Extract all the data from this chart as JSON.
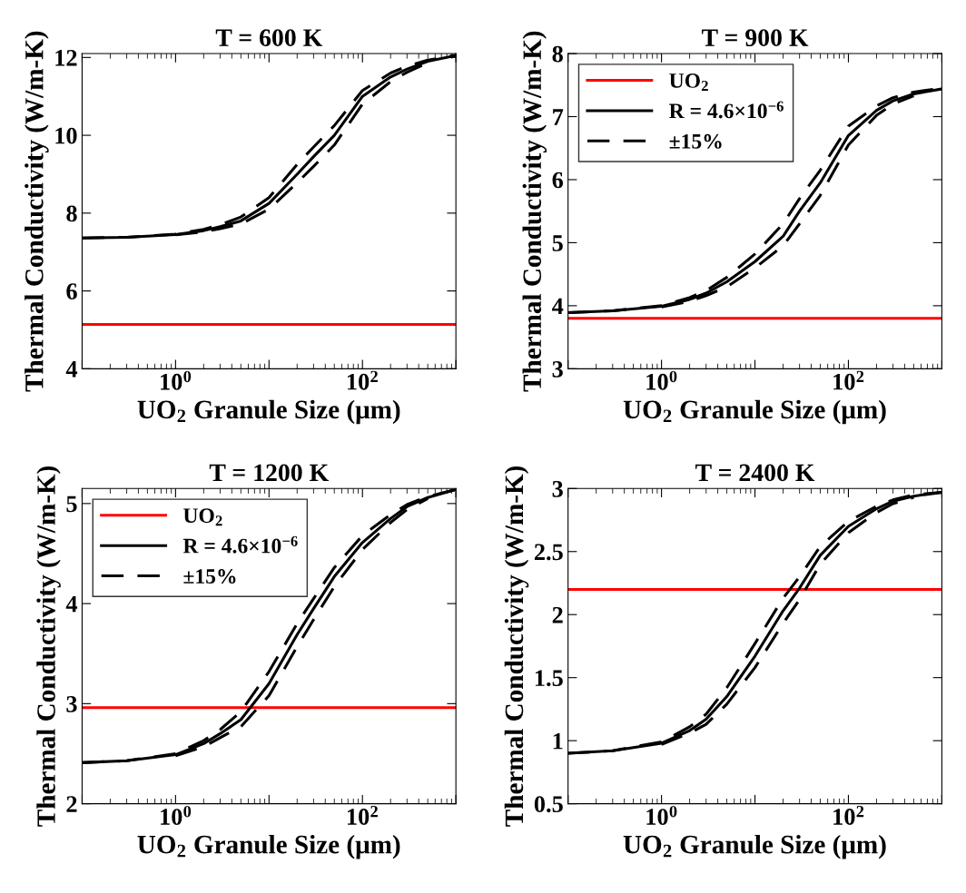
{
  "chart_data": [
    {
      "type": "line",
      "title": "T = 600 K",
      "xlabel": "UO$_{2}$ Granule Size (μm)",
      "ylabel": "Thermal Conductivity (W/m-K)",
      "log": "x",
      "x": [
        0.1,
        0.3,
        1,
        2,
        3,
        5,
        10,
        20,
        30,
        50,
        100,
        200,
        300,
        500,
        1000
      ],
      "xlim": [
        0.1,
        1000
      ],
      "xticks": [
        {
          "value": 0.1,
          "label": null
        },
        {
          "value": 1,
          "label": "10$^{0}$"
        },
        {
          "value": 10,
          "label": null
        },
        {
          "value": 100,
          "label": "10$^{2}$"
        },
        {
          "value": 1000,
          "label": null
        }
      ],
      "ylim": [
        4,
        12.1
      ],
      "yticks": [
        4,
        6,
        8,
        10,
        12
      ],
      "legend": false,
      "grid": false,
      "series": [
        {
          "color": "#ff0000",
          "line_style": "solid",
          "values": [
            5.14,
            5.14,
            5.14,
            5.14,
            5.14,
            5.14,
            5.14,
            5.14,
            5.14,
            5.14,
            5.14,
            5.14,
            5.14,
            5.14,
            5.14
          ]
        },
        {
          "color": "#000000",
          "line_style": "solid",
          "values": [
            7.36,
            7.38,
            7.45,
            7.55,
            7.65,
            7.8,
            8.25,
            9.0,
            9.45,
            10.0,
            11.0,
            11.5,
            11.7,
            11.9,
            12.05
          ]
        },
        {
          "color": "#000000",
          "line_style": "dashed",
          "values": [
            7.36,
            7.38,
            7.46,
            7.58,
            7.7,
            7.9,
            8.4,
            9.25,
            9.7,
            10.25,
            11.15,
            11.6,
            11.78,
            11.93,
            12.06
          ]
        },
        {
          "color": "#000000",
          "line_style": "dashed",
          "x": [
            1,
            2,
            3,
            5,
            10,
            20,
            30,
            50,
            100,
            200,
            300,
            500
          ],
          "values": [
            7.44,
            7.52,
            7.6,
            7.72,
            8.1,
            8.78,
            9.2,
            9.75,
            10.8,
            11.38,
            11.62,
            11.86
          ]
        }
      ]
    },
    {
      "type": "line",
      "title": "T = 900 K",
      "xlabel": "UO$_{2}$ Granule Size (μm)",
      "ylabel": "Thermal Conductivity (W/m-K)",
      "log": "x",
      "x": [
        0.1,
        0.3,
        1,
        2,
        3,
        5,
        10,
        20,
        30,
        50,
        100,
        200,
        300,
        500,
        1000
      ],
      "xlim": [
        0.1,
        1000
      ],
      "xticks": [
        {
          "value": 0.1,
          "label": null
        },
        {
          "value": 1,
          "label": "10$^{0}$"
        },
        {
          "value": 10,
          "label": null
        },
        {
          "value": 100,
          "label": "10$^{2}$"
        },
        {
          "value": 1000,
          "label": null
        }
      ],
      "ylim": [
        3,
        8
      ],
      "yticks": [
        3,
        4,
        5,
        6,
        7,
        8
      ],
      "legend": "top left",
      "grid": false,
      "series": [
        {
          "name": "UO$_{2}$",
          "color": "#ff0000",
          "line_style": "solid",
          "values": [
            3.8,
            3.8,
            3.8,
            3.8,
            3.8,
            3.8,
            3.8,
            3.8,
            3.8,
            3.8,
            3.8,
            3.8,
            3.8,
            3.8,
            3.8
          ]
        },
        {
          "name": "R = 4.6×10$^{−6}$",
          "color": "#000000",
          "line_style": "solid",
          "values": [
            3.89,
            3.92,
            3.99,
            4.1,
            4.2,
            4.38,
            4.7,
            5.1,
            5.5,
            5.95,
            6.7,
            7.1,
            7.25,
            7.36,
            7.44
          ]
        },
        {
          "name": "±15%",
          "color": "#000000",
          "line_style": "dashed",
          "values": [
            3.89,
            3.92,
            4.0,
            4.13,
            4.24,
            4.45,
            4.82,
            5.3,
            5.7,
            6.15,
            6.85,
            7.17,
            7.3,
            7.39,
            7.45
          ]
        },
        {
          "color": "#000000",
          "line_style": "dashed",
          "x": [
            1,
            2,
            3,
            5,
            10,
            20,
            30,
            50,
            100,
            200,
            300,
            500
          ],
          "values": [
            3.98,
            4.07,
            4.16,
            4.3,
            4.6,
            4.95,
            5.3,
            5.75,
            6.55,
            7.02,
            7.2,
            7.33
          ]
        }
      ]
    },
    {
      "type": "line",
      "title": "T = 1200 K",
      "xlabel": "UO$_{2}$ Granule Size (μm)",
      "ylabel": "Thermal Conductivity (W/m-K)",
      "log": "x",
      "x": [
        0.1,
        0.3,
        1,
        2,
        3,
        5,
        10,
        20,
        30,
        50,
        100,
        200,
        300,
        500,
        1000
      ],
      "xlim": [
        0.1,
        1000
      ],
      "xticks": [
        {
          "value": 0.1,
          "label": null
        },
        {
          "value": 1,
          "label": "10$^{0}$"
        },
        {
          "value": 10,
          "label": null
        },
        {
          "value": 100,
          "label": "10$^{2}$"
        },
        {
          "value": 1000,
          "label": null
        }
      ],
      "ylim": [
        2,
        5.15
      ],
      "yticks": [
        2,
        3,
        4,
        5
      ],
      "legend": "top left",
      "grid": false,
      "series": [
        {
          "name": "UO$_{2}$",
          "color": "#ff0000",
          "line_style": "solid",
          "values": [
            2.96,
            2.96,
            2.96,
            2.96,
            2.96,
            2.96,
            2.96,
            2.96,
            2.96,
            2.96,
            2.96,
            2.96,
            2.96,
            2.96,
            2.96
          ]
        },
        {
          "name": "R = 4.6×10$^{−6}$",
          "color": "#000000",
          "line_style": "solid",
          "values": [
            2.41,
            2.43,
            2.49,
            2.6,
            2.7,
            2.84,
            3.2,
            3.69,
            3.95,
            4.27,
            4.61,
            4.85,
            4.97,
            5.06,
            5.14
          ]
        },
        {
          "name": "±15%",
          "color": "#000000",
          "line_style": "dashed",
          "values": [
            2.41,
            2.43,
            2.5,
            2.63,
            2.74,
            2.92,
            3.32,
            3.8,
            4.05,
            4.36,
            4.68,
            4.89,
            4.99,
            5.07,
            5.14
          ]
        },
        {
          "color": "#000000",
          "line_style": "dashed",
          "x": [
            1,
            2,
            3,
            5,
            10,
            20,
            30,
            50,
            100,
            200,
            300,
            500
          ],
          "values": [
            2.48,
            2.57,
            2.66,
            2.77,
            3.08,
            3.57,
            3.84,
            4.17,
            4.54,
            4.81,
            4.94,
            5.05
          ]
        }
      ]
    },
    {
      "type": "line",
      "title": "T = 2400 K",
      "xlabel": "UO$_{2}$ Granule Size (μm)",
      "ylabel": "Thermal Conductivity (W/m-K)",
      "log": "x",
      "x": [
        0.1,
        0.3,
        1,
        2,
        3,
        5,
        10,
        20,
        30,
        50,
        100,
        200,
        300,
        500,
        1000
      ],
      "xlim": [
        0.1,
        1000
      ],
      "xticks": [
        {
          "value": 0.1,
          "label": null
        },
        {
          "value": 1,
          "label": "10$^{0}$"
        },
        {
          "value": 10,
          "label": null
        },
        {
          "value": 100,
          "label": "10$^{2}$"
        },
        {
          "value": 1000,
          "label": null
        }
      ],
      "ylim": [
        0.5,
        3
      ],
      "yticks": [
        0.5,
        1,
        1.5,
        2,
        2.5,
        3
      ],
      "legend": false,
      "grid": false,
      "series": [
        {
          "color": "#ff0000",
          "line_style": "solid",
          "values": [
            2.2,
            2.2,
            2.2,
            2.2,
            2.2,
            2.2,
            2.2,
            2.2,
            2.2,
            2.2,
            2.2,
            2.2,
            2.2,
            2.2,
            2.2
          ]
        },
        {
          "color": "#000000",
          "line_style": "solid",
          "values": [
            0.9,
            0.92,
            0.98,
            1.08,
            1.17,
            1.35,
            1.67,
            2.03,
            2.21,
            2.47,
            2.7,
            2.84,
            2.9,
            2.94,
            2.97
          ]
        },
        {
          "color": "#000000",
          "line_style": "dashed",
          "values": [
            0.9,
            0.92,
            0.99,
            1.11,
            1.21,
            1.42,
            1.77,
            2.13,
            2.3,
            2.54,
            2.74,
            2.86,
            2.91,
            2.95,
            2.97
          ]
        },
        {
          "color": "#000000",
          "line_style": "dashed",
          "x": [
            1,
            2,
            3,
            5,
            10,
            20,
            30,
            50,
            100,
            200,
            300,
            500
          ],
          "values": [
            0.97,
            1.06,
            1.13,
            1.29,
            1.58,
            1.93,
            2.12,
            2.4,
            2.65,
            2.81,
            2.88,
            2.93
          ]
        }
      ]
    }
  ]
}
